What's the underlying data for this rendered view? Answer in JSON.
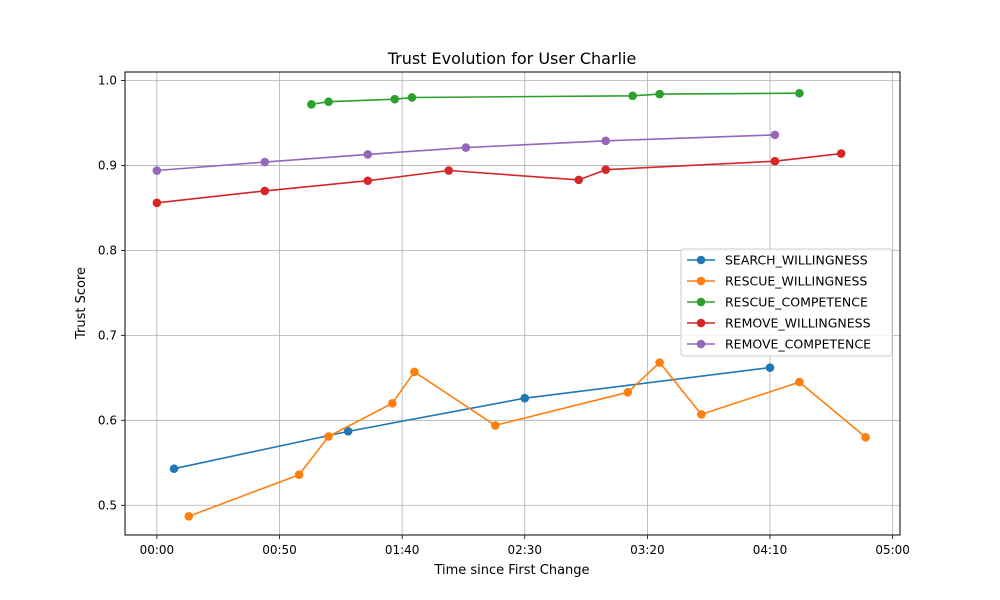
{
  "chart_data": {
    "type": "line",
    "title": "Trust Evolution for User Charlie",
    "xlabel": "Time since First Change",
    "ylabel": "Trust Score",
    "x_unit": "minutes",
    "xlim": [
      -13,
      303
    ],
    "ylim": [
      0.465,
      1.01
    ],
    "x_ticks": [
      {
        "value": 0,
        "label": "00:00"
      },
      {
        "value": 50,
        "label": "00:50"
      },
      {
        "value": 100,
        "label": "01:40"
      },
      {
        "value": 150,
        "label": "02:30"
      },
      {
        "value": 200,
        "label": "03:20"
      },
      {
        "value": 250,
        "label": "04:10"
      },
      {
        "value": 300,
        "label": "05:00"
      }
    ],
    "y_ticks": [
      {
        "value": 0.5,
        "label": "0.5"
      },
      {
        "value": 0.6,
        "label": "0.6"
      },
      {
        "value": 0.7,
        "label": "0.7"
      },
      {
        "value": 0.8,
        "label": "0.8"
      },
      {
        "value": 0.9,
        "label": "0.9"
      },
      {
        "value": 1.0,
        "label": "1.0"
      }
    ],
    "grid": true,
    "legend_position": "center-right",
    "series": [
      {
        "name": "SEARCH_WILLINGNESS",
        "color": "#1f77b4",
        "points": [
          [
            7,
            0.543
          ],
          [
            78,
            0.587
          ],
          [
            150,
            0.626
          ],
          [
            250,
            0.662
          ]
        ]
      },
      {
        "name": "RESCUE_WILLINGNESS",
        "color": "#ff7f0e",
        "points": [
          [
            13,
            0.487
          ],
          [
            58,
            0.536
          ],
          [
            70,
            0.581
          ],
          [
            96,
            0.62
          ],
          [
            105,
            0.657
          ],
          [
            138,
            0.594
          ],
          [
            192,
            0.633
          ],
          [
            205,
            0.668
          ],
          [
            222,
            0.607
          ],
          [
            262,
            0.645
          ],
          [
            289,
            0.58
          ]
        ]
      },
      {
        "name": "RESCUE_COMPETENCE",
        "color": "#2ca02c",
        "points": [
          [
            63,
            0.972
          ],
          [
            70,
            0.975
          ],
          [
            97,
            0.978
          ],
          [
            104,
            0.98
          ],
          [
            194,
            0.982
          ],
          [
            205,
            0.984
          ],
          [
            262,
            0.985
          ]
        ]
      },
      {
        "name": "REMOVE_WILLINGNESS",
        "color": "#d62728",
        "points": [
          [
            0,
            0.856
          ],
          [
            44,
            0.87
          ],
          [
            86,
            0.882
          ],
          [
            119,
            0.894
          ],
          [
            172,
            0.883
          ],
          [
            183,
            0.895
          ],
          [
            252,
            0.905
          ],
          [
            279,
            0.914
          ]
        ]
      },
      {
        "name": "REMOVE_COMPETENCE",
        "color": "#9467bd",
        "points": [
          [
            0,
            0.894
          ],
          [
            44,
            0.904
          ],
          [
            86,
            0.913
          ],
          [
            126,
            0.921
          ],
          [
            183,
            0.929
          ],
          [
            252,
            0.936
          ]
        ]
      }
    ]
  }
}
